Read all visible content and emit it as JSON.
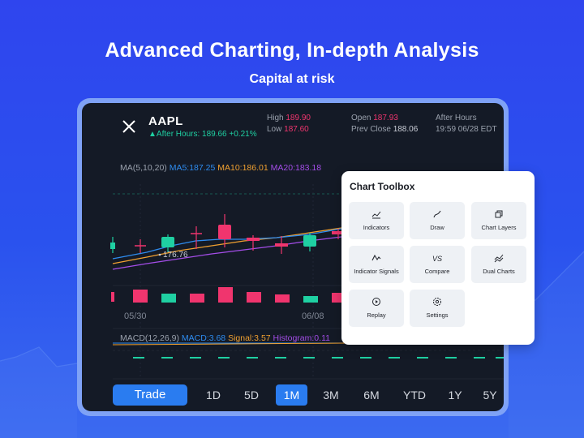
{
  "headline": "Advanced Charting, In-depth Analysis",
  "subline": "Capital at risk",
  "quote": {
    "symbol": "AAPL",
    "after_hours": "After Hours: 189.66 +0.21%",
    "high_label": "High",
    "high_value": "189.90",
    "low_label": "Low",
    "low_value": "187.60",
    "open_label": "Open",
    "open_value": "187.93",
    "prev_close_label": "Prev Close",
    "prev_close_value": "188.06",
    "session_label": "After Hours",
    "session_time": "19:59 06/28 EDT"
  },
  "ma": {
    "label": "MA(5,10,20)",
    "ma5": "MA5:187.25",
    "ma10": "MA10:186.01",
    "ma20": "MA20:183.18",
    "colors": {
      "ma5": "#2e8cf0",
      "ma10": "#f0a030",
      "ma20": "#a44de8"
    }
  },
  "chart": {
    "min_marker": "176.76",
    "dates": [
      "05/30",
      "06/08"
    ],
    "colors": {
      "up": "#1fd0a2",
      "down": "#f0356e"
    }
  },
  "macd": {
    "label": "MACD(12,26,9)",
    "macd": "MACD:3.68",
    "signal": "Signal:3.57",
    "histogram": "Histogram:0.11",
    "colors": {
      "macd": "#2e8cf0",
      "signal": "#f0a030",
      "histogram": "#a44de8"
    }
  },
  "timeframe": {
    "trade_label": "Trade",
    "options": [
      "1D",
      "5D",
      "1M",
      "3M",
      "6M",
      "YTD",
      "1Y",
      "5Y"
    ],
    "active": "1M"
  },
  "toolbox": {
    "title": "Chart Toolbox",
    "tools": [
      {
        "label": "Indicators",
        "icon": "indicators-icon"
      },
      {
        "label": "Draw",
        "icon": "draw-icon"
      },
      {
        "label": "Chart Layers",
        "icon": "layers-icon"
      },
      {
        "label": "Indicator Signals",
        "icon": "signal-icon"
      },
      {
        "label": "Compare",
        "icon": "compare-icon"
      },
      {
        "label": "Dual Charts",
        "icon": "dual-charts-icon"
      },
      {
        "label": "Replay",
        "icon": "replay-icon"
      },
      {
        "label": "Settings",
        "icon": "settings-icon"
      }
    ]
  }
}
